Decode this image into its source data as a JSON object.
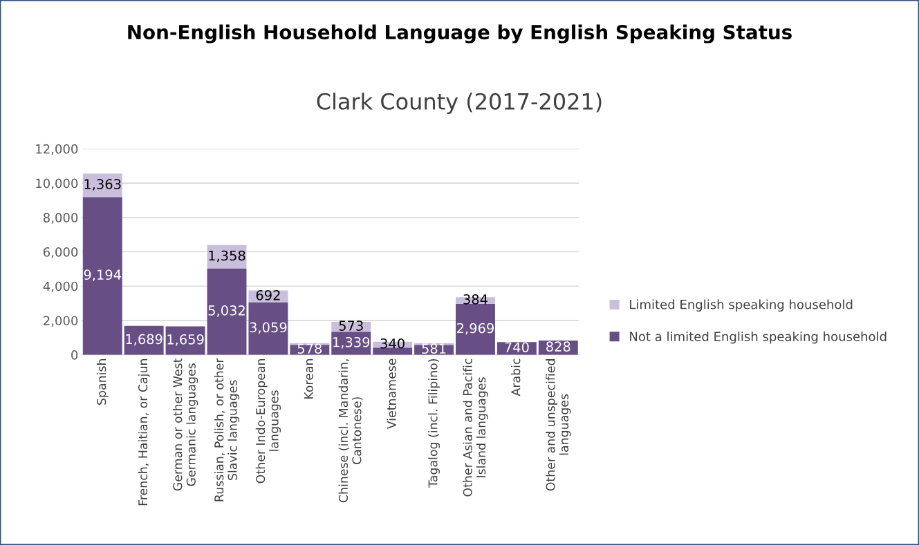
{
  "chart_data": {
    "type": "bar",
    "title": "Non-English Household Language by English Speaking Status",
    "subtitle": "Clark County (2017-2021)",
    "categories": [
      "Spanish",
      "French, Haitian, or Cajun",
      "German or other West\nGermanic languages",
      "Russian, Polish, or other\nSlavic languages",
      "Other Indo-European\nlanguages",
      "Korean",
      "Chinese (incl. Mandarin,\nCantonese)",
      "Vietnamese",
      "Tagalog (incl. Filipino)",
      "Other Asian and Pacific\nIsland languages",
      "Arabic",
      "Other and unspecified\nlanguages"
    ],
    "stacked": true,
    "series": [
      {
        "name": "Not a limited English speaking household",
        "color": "#674e84",
        "values": [
          9194,
          1689,
          1659,
          5032,
          3059,
          578,
          1339,
          420,
          581,
          2969,
          740,
          828
        ],
        "value_labels": [
          "9,194",
          "1,689",
          "1,659",
          "5,032",
          "3,059",
          "578",
          "1,339",
          null,
          "581",
          "2,969",
          "740",
          "828"
        ]
      },
      {
        "name": "Limited English speaking household",
        "color": "#c9bedb",
        "values": [
          1363,
          null,
          null,
          1358,
          692,
          100,
          573,
          340,
          100,
          384,
          null,
          null
        ],
        "value_labels": [
          "1,363",
          null,
          null,
          "1,358",
          "692",
          null,
          "573",
          "340",
          null,
          "384",
          null,
          null
        ]
      }
    ],
    "ylim": [
      0,
      12000
    ],
    "yticks": [
      {
        "value": 0,
        "label": "0"
      },
      {
        "value": 2000,
        "label": "2,000"
      },
      {
        "value": 4000,
        "label": "4,000"
      },
      {
        "value": 6000,
        "label": "6,000"
      },
      {
        "value": 8000,
        "label": "8,000"
      },
      {
        "value": 10000,
        "label": "10,000"
      },
      {
        "value": 12000,
        "label": "12,000"
      }
    ],
    "grid": "y",
    "legend": "right"
  }
}
